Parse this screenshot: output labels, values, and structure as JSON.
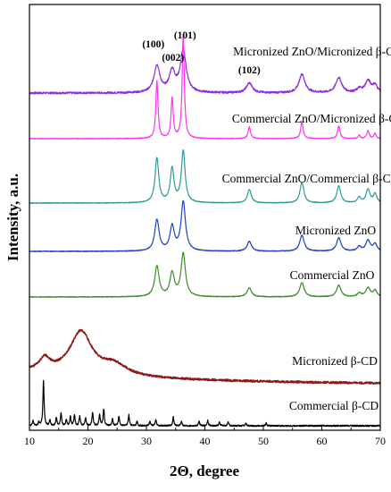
{
  "chart_data": {
    "type": "line",
    "xlabel": "2Θ, degree",
    "ylabel": "Intensity, a.u.",
    "xlim": [
      10,
      70
    ],
    "xticks": [
      10,
      20,
      30,
      40,
      50,
      60,
      70
    ],
    "grid": false,
    "legend": "labels beside each trace",
    "peak_annotations": [
      {
        "label": "(100)",
        "x": 31.8
      },
      {
        "label": "(002)",
        "x": 34.4
      },
      {
        "label": "(101)",
        "x": 36.3
      },
      {
        "label": "(102)",
        "x": 47.6
      }
    ],
    "series": [
      {
        "name": "Micronized ZnO/Micronized β-CD",
        "color": "#8c2fe0",
        "style": "noisy",
        "baseline": 0.0,
        "peaks": [
          [
            31.8,
            30,
            0.6
          ],
          [
            34.4,
            23,
            0.6
          ],
          [
            36.3,
            47,
            0.6
          ],
          [
            47.6,
            11,
            0.6
          ],
          [
            56.6,
            21,
            0.6
          ],
          [
            62.9,
            17,
            0.6
          ],
          [
            66.4,
            4,
            0.5
          ],
          [
            67.9,
            13,
            0.6
          ],
          [
            69.1,
            8,
            0.5
          ]
        ]
      },
      {
        "name": "Commercial ZnO/Micronized β-CD",
        "color": "#ff33ee",
        "style": "smooth",
        "baseline": 0.0,
        "peaks": [
          [
            31.8,
            64,
            0.22
          ],
          [
            34.4,
            45,
            0.22
          ],
          [
            36.3,
            116,
            0.22
          ],
          [
            47.6,
            13,
            0.25
          ],
          [
            56.6,
            19,
            0.25
          ],
          [
            62.9,
            14,
            0.25
          ],
          [
            66.4,
            4,
            0.2
          ],
          [
            67.9,
            9,
            0.25
          ],
          [
            69.1,
            6,
            0.2
          ]
        ]
      },
      {
        "name": "Commercial ZnO/Commercial β-CD",
        "color": "#2e9c96",
        "style": "smooth",
        "baseline": 0.0,
        "peaks": [
          [
            31.8,
            50,
            0.38
          ],
          [
            34.4,
            38,
            0.38
          ],
          [
            36.3,
            58,
            0.38
          ],
          [
            47.6,
            15,
            0.4
          ],
          [
            56.6,
            23,
            0.4
          ],
          [
            62.9,
            19,
            0.4
          ],
          [
            66.4,
            6,
            0.35
          ],
          [
            67.9,
            15,
            0.4
          ],
          [
            69.1,
            10,
            0.35
          ]
        ]
      },
      {
        "name": "Micronized ZnO",
        "color": "#1c3fd0",
        "style": "smooth",
        "baseline": 0.0,
        "peaks": [
          [
            31.8,
            35,
            0.45
          ],
          [
            34.4,
            27,
            0.45
          ],
          [
            36.3,
            55,
            0.45
          ],
          [
            47.6,
            11,
            0.45
          ],
          [
            56.6,
            18,
            0.45
          ],
          [
            62.9,
            15,
            0.45
          ],
          [
            66.4,
            5,
            0.4
          ],
          [
            67.9,
            12,
            0.45
          ],
          [
            69.1,
            8,
            0.4
          ]
        ]
      },
      {
        "name": "Commercial ZnO",
        "color": "#3c8c28",
        "style": "smooth",
        "baseline": 0.0,
        "peaks": [
          [
            31.8,
            34,
            0.45
          ],
          [
            34.4,
            26,
            0.45
          ],
          [
            36.3,
            48,
            0.45
          ],
          [
            47.6,
            10,
            0.45
          ],
          [
            56.6,
            16,
            0.45
          ],
          [
            62.9,
            13,
            0.45
          ],
          [
            66.4,
            4,
            0.4
          ],
          [
            67.9,
            10,
            0.45
          ],
          [
            69.1,
            7,
            0.4
          ]
        ]
      },
      {
        "name": "Micronized β-CD",
        "color": "#8a1a1a",
        "style": "amorphous",
        "baseline": 0.0,
        "peaks": [
          [
            12.6,
            14,
            1.1
          ],
          [
            18.8,
            48,
            2.3
          ],
          [
            24.5,
            12,
            2.6
          ]
        ]
      },
      {
        "name": "Commercial β-CD",
        "color": "#000000",
        "style": "crystalline",
        "baseline": 0.0,
        "peaks": [
          [
            10.6,
            6,
            0.12
          ],
          [
            11.6,
            4,
            0.12
          ],
          [
            12.4,
            50,
            0.12
          ],
          [
            13.5,
            6,
            0.12
          ],
          [
            14.6,
            9,
            0.12
          ],
          [
            15.4,
            14,
            0.12
          ],
          [
            16.3,
            7,
            0.12
          ],
          [
            17.0,
            10,
            0.12
          ],
          [
            17.7,
            12,
            0.12
          ],
          [
            18.6,
            11,
            0.12
          ],
          [
            19.6,
            9,
            0.12
          ],
          [
            20.8,
            15,
            0.12
          ],
          [
            22.0,
            13,
            0.12
          ],
          [
            22.7,
            19,
            0.12
          ],
          [
            24.2,
            8,
            0.12
          ],
          [
            25.3,
            11,
            0.12
          ],
          [
            27.0,
            12,
            0.12
          ],
          [
            28.4,
            5,
            0.12
          ],
          [
            30.6,
            5,
            0.12
          ],
          [
            31.6,
            7,
            0.12
          ],
          [
            34.6,
            10,
            0.12
          ],
          [
            36.0,
            5,
            0.12
          ],
          [
            39.0,
            5,
            0.12
          ],
          [
            40.5,
            6,
            0.12
          ],
          [
            42.5,
            4,
            0.12
          ],
          [
            44.0,
            4,
            0.12
          ],
          [
            47.0,
            3,
            0.12
          ],
          [
            50.5,
            3,
            0.12
          ]
        ]
      }
    ]
  }
}
